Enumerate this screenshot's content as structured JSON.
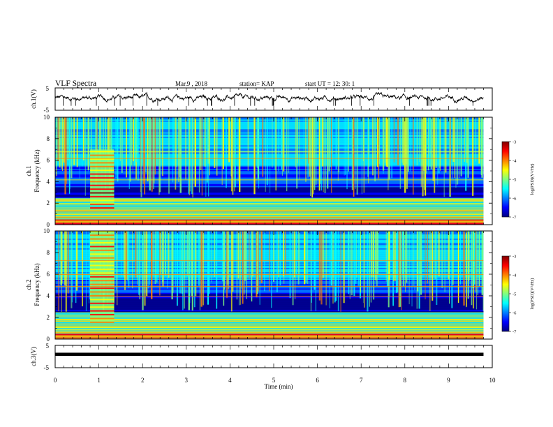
{
  "header": {
    "title": "VLF Spectra",
    "date": "Mar.9 , 2018",
    "station": "station= KAP",
    "start": "start UT = 12: 30: 1"
  },
  "colors": {
    "colormap": [
      "#000080",
      "#0000ff",
      "#0080ff",
      "#00ffff",
      "#80ff80",
      "#ffff00",
      "#ff8000",
      "#ff0000",
      "#800000"
    ],
    "waveform": "#000000"
  },
  "chart_data": [
    {
      "type": "line",
      "id": "ch1",
      "ylabel": "ch.1(V)",
      "ylim": [
        -5,
        5
      ],
      "yticks": [
        5,
        -5
      ],
      "approx_mean": 0.5,
      "approx_amplitude": 2,
      "xlim": [
        0,
        10
      ]
    },
    {
      "type": "heatmap",
      "id": "ch1_spectrogram",
      "ylabel_channel": "ch.1",
      "ylabel": "Frequency (kHz)",
      "ylim": [
        0,
        10
      ],
      "yticks": [
        0,
        2,
        4,
        6,
        8,
        10
      ],
      "xlim": [
        0,
        10
      ],
      "data_end_min": 9.8,
      "disturbance_min": [
        0.8,
        1.35
      ],
      "colorbar": {
        "label": "log(PSD)(V²/Hz)",
        "range": [
          -7,
          -3
        ],
        "ticks": [
          -3,
          -4,
          -5,
          -6,
          -7
        ]
      }
    },
    {
      "type": "heatmap",
      "id": "ch2_spectrogram",
      "ylabel_channel": "ch.2",
      "ylabel": "Frequency (kHz)",
      "ylim": [
        0,
        10
      ],
      "yticks": [
        0,
        2,
        4,
        6,
        8,
        10
      ],
      "xlim": [
        0,
        10
      ],
      "data_end_min": 9.8,
      "disturbance_min": [
        0.8,
        1.35
      ],
      "colorbar": {
        "label": "log(PSD)(V²/Hz)",
        "range": [
          -7,
          -3
        ],
        "ticks": [
          -3,
          -4,
          -5,
          -6,
          -7
        ]
      }
    },
    {
      "type": "line",
      "id": "ch3",
      "ylabel": "ch.3(V)",
      "ylim": [
        -5,
        5
      ],
      "yticks": [
        5,
        -5
      ],
      "constant_value": 1,
      "xlim": [
        0,
        10
      ],
      "xlabel": "Time (min)",
      "xticks": [
        "0",
        "1",
        "2",
        "3",
        "4",
        "5",
        "6",
        "7",
        "8",
        "9",
        "10"
      ]
    }
  ]
}
